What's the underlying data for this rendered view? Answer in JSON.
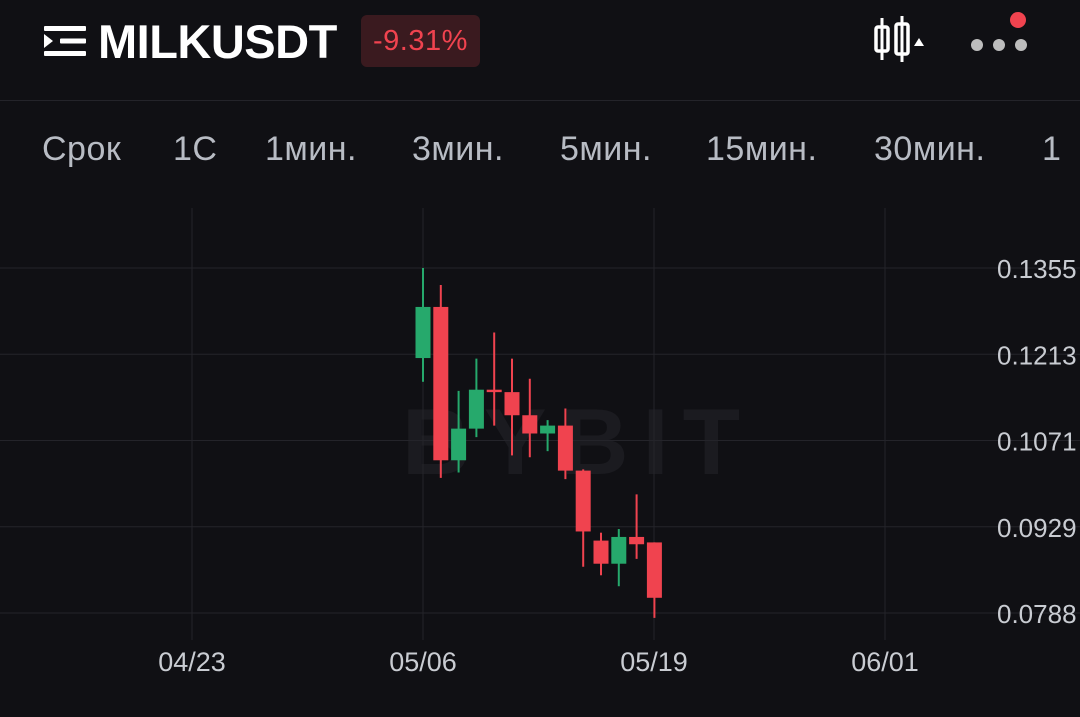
{
  "header": {
    "title": "MILKUSDT",
    "change": "-9.31%",
    "menu_icon": "menu-icon",
    "chart_type_icon": "candlestick-chart-icon",
    "more_icon": "more-horizontal-icon"
  },
  "tabs": [
    {
      "label": "Срок"
    },
    {
      "label": "1С"
    },
    {
      "label": "1мин."
    },
    {
      "label": "3мин."
    },
    {
      "label": "5мин."
    },
    {
      "label": "15мин."
    },
    {
      "label": "30мин."
    },
    {
      "label": "1"
    }
  ],
  "colors": {
    "up": "#26a96c",
    "down": "#f0434f",
    "background": "#101014",
    "grid": "#24242a",
    "axis_text": "#c9ccd2"
  },
  "chart_data": {
    "type": "candlestick",
    "watermark": "BYBIT",
    "y_ticks": [
      "0.1355",
      "0.1213",
      "0.1071",
      "0.0929",
      "0.0788"
    ],
    "x_ticks": [
      "04/23",
      "05/06",
      "05/19",
      "06/01"
    ],
    "ylim": [
      0.0788,
      0.1355
    ],
    "candles": [
      {
        "date": "05/06",
        "open": 0.1207,
        "high": 0.1355,
        "low": 0.1168,
        "close": 0.1291
      },
      {
        "date": "05/07",
        "open": 0.1291,
        "high": 0.1327,
        "low": 0.101,
        "close": 0.1039
      },
      {
        "date": "05/08",
        "open": 0.1039,
        "high": 0.1153,
        "low": 0.1019,
        "close": 0.1091
      },
      {
        "date": "05/09",
        "open": 0.1091,
        "high": 0.1206,
        "low": 0.1077,
        "close": 0.1155
      },
      {
        "date": "05/10",
        "open": 0.1155,
        "high": 0.1249,
        "low": 0.1096,
        "close": 0.1151
      },
      {
        "date": "05/11",
        "open": 0.1151,
        "high": 0.1206,
        "low": 0.1047,
        "close": 0.1113
      },
      {
        "date": "05/12",
        "open": 0.1113,
        "high": 0.1173,
        "low": 0.1044,
        "close": 0.1083
      },
      {
        "date": "05/13",
        "open": 0.1083,
        "high": 0.1105,
        "low": 0.1054,
        "close": 0.1096
      },
      {
        "date": "05/14",
        "open": 0.1096,
        "high": 0.1124,
        "low": 0.1008,
        "close": 0.1022
      },
      {
        "date": "05/15",
        "open": 0.1022,
        "high": 0.1024,
        "low": 0.0864,
        "close": 0.0922
      },
      {
        "date": "05/16",
        "open": 0.0907,
        "high": 0.092,
        "low": 0.085,
        "close": 0.0869
      },
      {
        "date": "05/17",
        "open": 0.0869,
        "high": 0.0926,
        "low": 0.0832,
        "close": 0.0913
      },
      {
        "date": "05/18",
        "open": 0.0913,
        "high": 0.0983,
        "low": 0.0877,
        "close": 0.0901
      },
      {
        "date": "05/19",
        "open": 0.0904,
        "high": 0.0904,
        "low": 0.078,
        "close": 0.0813
      }
    ]
  }
}
